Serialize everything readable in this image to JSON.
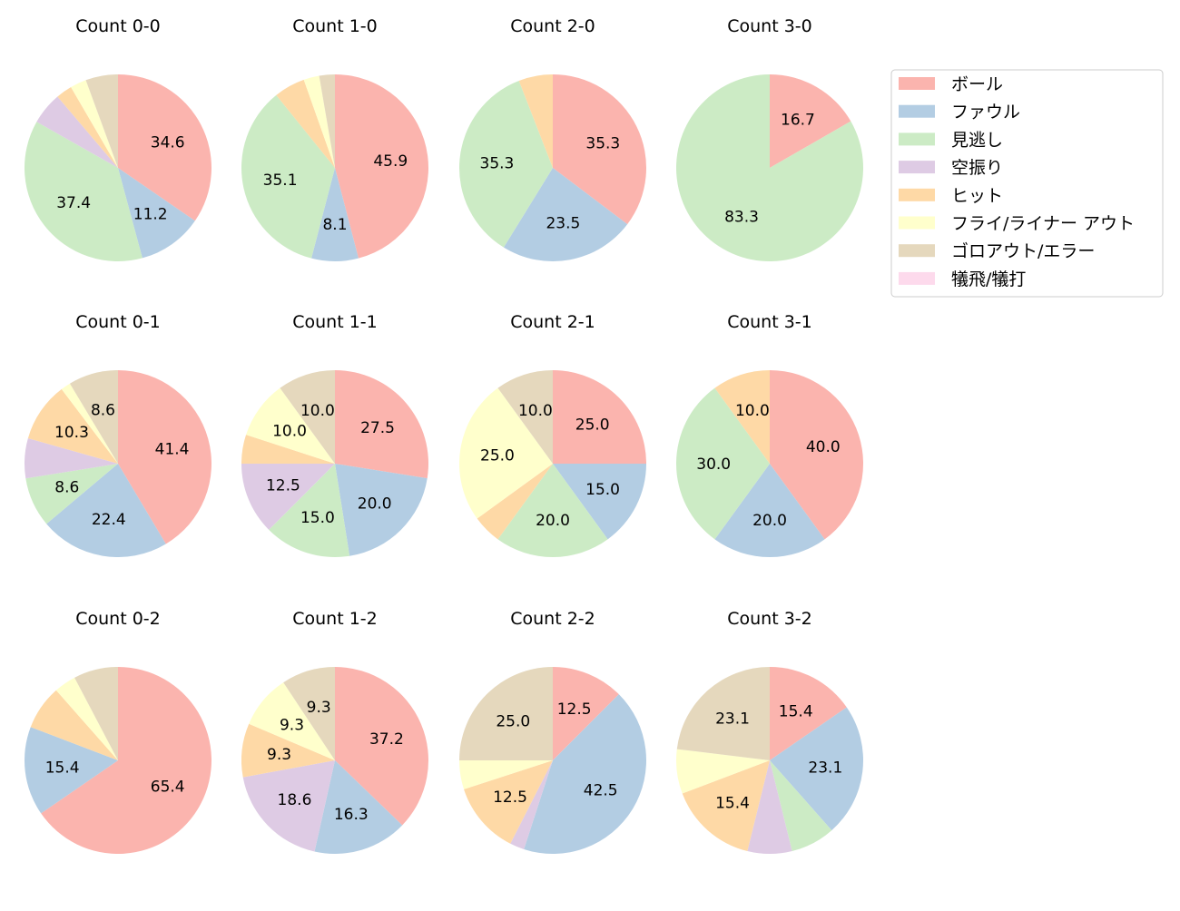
{
  "chart_data": [
    {
      "type": "pie",
      "title": "Count 0-0",
      "values": [
        34.6,
        11.2,
        37.4,
        5.6,
        2.8,
        2.8,
        5.6,
        0
      ]
    },
    {
      "type": "pie",
      "title": "Count 1-0",
      "values": [
        45.9,
        8.1,
        35.1,
        0,
        5.4,
        2.7,
        2.7,
        0
      ]
    },
    {
      "type": "pie",
      "title": "Count 2-0",
      "values": [
        35.3,
        23.5,
        35.3,
        0,
        5.9,
        0,
        0,
        0
      ]
    },
    {
      "type": "pie",
      "title": "Count 3-0",
      "values": [
        16.7,
        0,
        83.3,
        0,
        0,
        0,
        0,
        0
      ]
    },
    {
      "type": "pie",
      "title": "Count 0-1",
      "values": [
        41.4,
        22.4,
        8.6,
        6.9,
        10.3,
        1.7,
        8.6,
        0
      ]
    },
    {
      "type": "pie",
      "title": "Count 1-1",
      "values": [
        27.5,
        20.0,
        15.0,
        12.5,
        5.0,
        10.0,
        10.0,
        0
      ]
    },
    {
      "type": "pie",
      "title": "Count 2-1",
      "values": [
        25.0,
        15.0,
        20.0,
        0,
        5.0,
        25.0,
        10.0,
        0
      ]
    },
    {
      "type": "pie",
      "title": "Count 3-1",
      "values": [
        40.0,
        20.0,
        30.0,
        0,
        10.0,
        0,
        0,
        0
      ]
    },
    {
      "type": "pie",
      "title": "Count 0-2",
      "values": [
        65.4,
        15.4,
        0,
        0,
        7.7,
        3.8,
        7.7,
        0
      ]
    },
    {
      "type": "pie",
      "title": "Count 1-2",
      "values": [
        37.2,
        16.3,
        0,
        18.6,
        9.3,
        9.3,
        9.3,
        0
      ]
    },
    {
      "type": "pie",
      "title": "Count 2-2",
      "values": [
        12.5,
        42.5,
        0,
        2.5,
        12.5,
        5.0,
        25.0,
        0
      ]
    },
    {
      "type": "pie",
      "title": "Count 3-2",
      "values": [
        15.4,
        23.1,
        7.7,
        7.7,
        15.4,
        7.7,
        23.1,
        0
      ]
    }
  ],
  "categories": [
    "ボール",
    "ファウル",
    "見逃し",
    "空振り",
    "ヒット",
    "フライ/ライナー アウト",
    "ゴロアウト/エラー",
    "犠飛/犠打"
  ],
  "colors": [
    "#fbb4ae",
    "#b3cde3",
    "#ccebc5",
    "#decbe4",
    "#fed9a6",
    "#ffffcc",
    "#e5d8bd",
    "#fddaec"
  ],
  "legend": {
    "placement": "top-right"
  },
  "label_threshold": 8
}
